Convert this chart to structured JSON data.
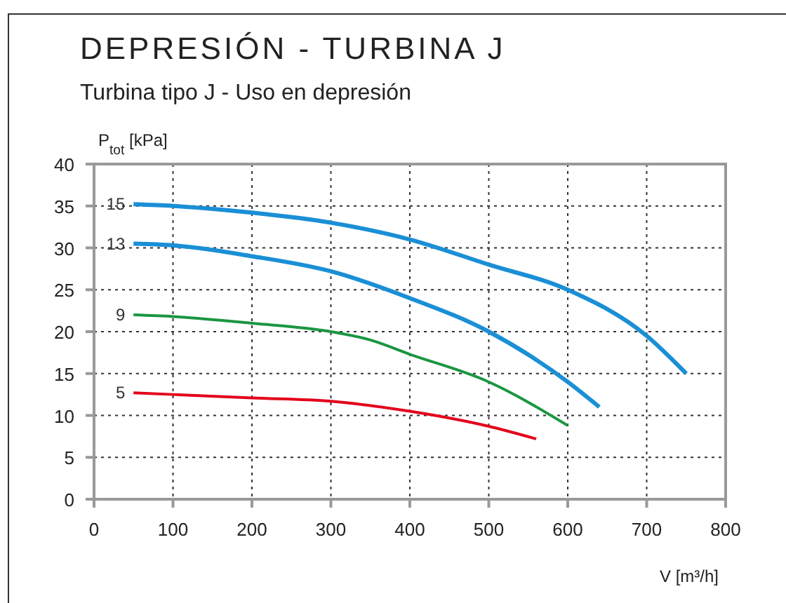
{
  "chart_data": {
    "type": "line",
    "title": "DEPRESIÓN - TURBINA J",
    "subtitle": "Turbina tipo J - Uso en depresión",
    "xlabel": "V [m³/h]",
    "ylabel": "P$_{tot}$ [kPa]",
    "xlim": [
      0,
      800
    ],
    "ylim": [
      0,
      40
    ],
    "xticks": [
      0,
      100,
      200,
      300,
      400,
      500,
      600,
      700,
      800
    ],
    "yticks": [
      0,
      5,
      10,
      15,
      20,
      25,
      30,
      35,
      40
    ],
    "grid": true,
    "marker": "none",
    "line_style": "solid",
    "series": [
      {
        "name": "15",
        "color": "#1a8fd6",
        "x": [
          50,
          100,
          200,
          300,
          400,
          500,
          600,
          700,
          750
        ],
        "values": [
          35.2,
          35,
          34.2,
          33,
          31,
          28,
          25,
          19.5,
          15
        ]
      },
      {
        "name": "13",
        "color": "#1a8fd6",
        "x": [
          50,
          100,
          200,
          300,
          400,
          500,
          600,
          640
        ],
        "values": [
          30.5,
          30.3,
          29,
          27.2,
          24,
          20,
          14,
          11
        ]
      },
      {
        "name": "9",
        "color": "#1a9641",
        "x": [
          50,
          100,
          200,
          300,
          350,
          400,
          500,
          600
        ],
        "values": [
          22,
          21.8,
          21,
          20,
          19,
          17.3,
          14,
          8.8
        ]
      },
      {
        "name": "5",
        "color": "#e3001b",
        "x": [
          50,
          100,
          200,
          300,
          400,
          500,
          560
        ],
        "values": [
          12.7,
          12.5,
          12.1,
          11.7,
          10.5,
          8.7,
          7.2
        ]
      }
    ]
  }
}
